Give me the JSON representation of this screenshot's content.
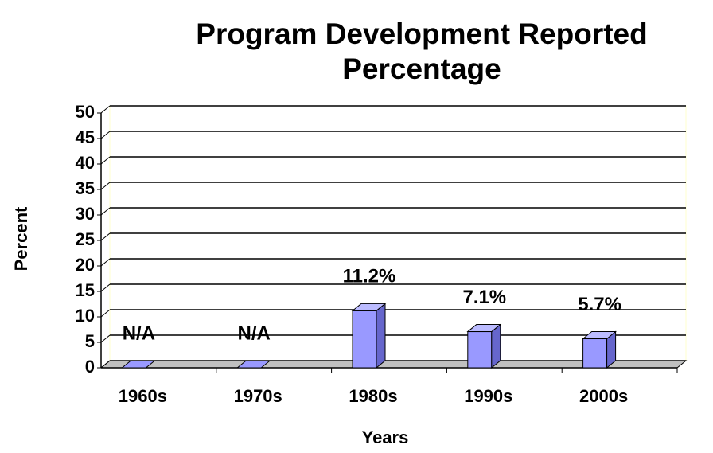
{
  "chart_data": {
    "type": "bar3d",
    "title": [
      "Program Development Reported",
      "Percentage"
    ],
    "x_label": "Years",
    "y_label": "Percent",
    "categories": [
      "1960s",
      "1970s",
      "1980s",
      "1990s",
      "2000s"
    ],
    "values": [
      null,
      null,
      11.2,
      7.1,
      5.7
    ],
    "value_labels": [
      "N/A",
      "N/A",
      "11.2%",
      "7.1%",
      "5.7%"
    ],
    "color": "#9999ff",
    "ylim": [
      0,
      50
    ],
    "yticks": [
      0,
      5,
      10,
      15,
      20,
      25,
      30,
      35,
      40,
      45,
      50
    ],
    "grid": true
  }
}
